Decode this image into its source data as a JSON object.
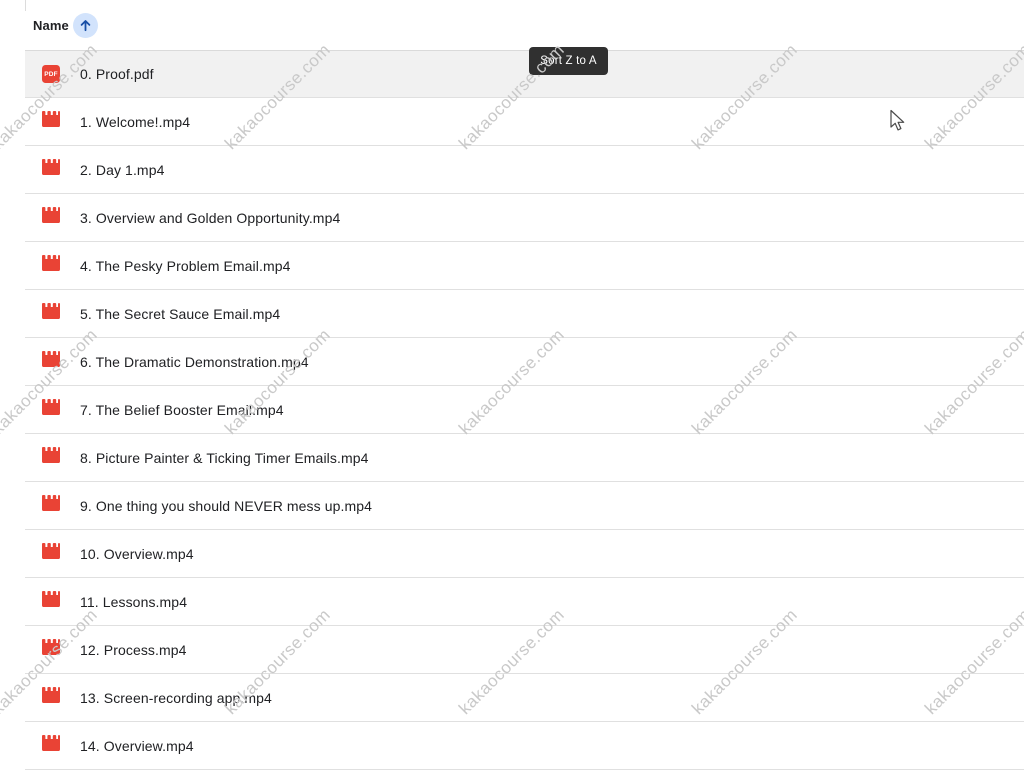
{
  "header": {
    "column_label": "Name",
    "sort_direction": "ascending"
  },
  "tooltip": {
    "label": "Sort Z to A"
  },
  "watermark": {
    "text": "kakaocourse.com"
  },
  "icons": {
    "pdf_badge": "PDF"
  },
  "colors": {
    "icon_red": "#e94335",
    "selected_row_bg": "#f1f1f1",
    "divider": "#e0e0e0",
    "sort_chip_bg": "#d2e3fc",
    "sort_arrow": "#174ea6",
    "tooltip_bg": "#303030",
    "watermark": "#c9c9c9"
  },
  "files": [
    {
      "name": "0. Proof.pdf",
      "type": "pdf",
      "selected": true
    },
    {
      "name": "1. Welcome!.mp4",
      "type": "video",
      "selected": false
    },
    {
      "name": "2. Day 1.mp4",
      "type": "video",
      "selected": false
    },
    {
      "name": "3. Overview and Golden Opportunity.mp4",
      "type": "video",
      "selected": false
    },
    {
      "name": "4. The Pesky Problem Email.mp4",
      "type": "video",
      "selected": false
    },
    {
      "name": "5. The Secret Sauce Email.mp4",
      "type": "video",
      "selected": false
    },
    {
      "name": "6. The Dramatic Demonstration.mp4",
      "type": "video",
      "selected": false
    },
    {
      "name": "7. The Belief Booster Email.mp4",
      "type": "video",
      "selected": false
    },
    {
      "name": "8. Picture Painter & Ticking Timer Emails.mp4",
      "type": "video",
      "selected": false
    },
    {
      "name": "9. One thing you should NEVER mess up.mp4",
      "type": "video",
      "selected": false
    },
    {
      "name": "10. Overview.mp4",
      "type": "video",
      "selected": false
    },
    {
      "name": "11. Lessons.mp4",
      "type": "video",
      "selected": false
    },
    {
      "name": "12. Process.mp4",
      "type": "video",
      "selected": false
    },
    {
      "name": "13. Screen-recording app.mp4",
      "type": "video",
      "selected": false
    },
    {
      "name": "14. Overview.mp4",
      "type": "video",
      "selected": false
    }
  ]
}
